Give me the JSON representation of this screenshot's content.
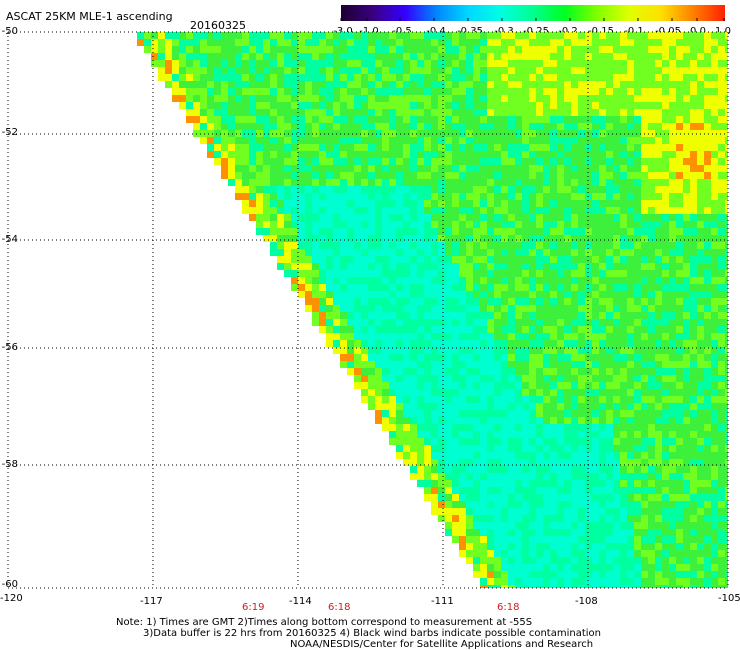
{
  "header": {
    "title": "ASCAT 25KM MLE-1 ascending",
    "date": "20160325"
  },
  "colorbar": {
    "labels": [
      "-3.0",
      "-1.0",
      "-0.5",
      "-0.4",
      "-0.35",
      "-0.3",
      "-0.25",
      "-0.2",
      "-0.15",
      "-0.1",
      "-0.05",
      "0.0",
      "1.0"
    ],
    "colors": [
      "#1a0033",
      "#3a0080",
      "#3300ff",
      "#0088ff",
      "#00d8ff",
      "#00ffe0",
      "#00ff90",
      "#00ff20",
      "#80ff00",
      "#e0ff00",
      "#ffe000",
      "#ff8000",
      "#ff2000"
    ]
  },
  "map": {
    "lon_range": [
      -120,
      -105
    ],
    "lat_range": [
      -60,
      -50
    ],
    "x_ticks": [
      "-120",
      "-117",
      "-114",
      "-111",
      "-108",
      "-105"
    ],
    "y_ticks": [
      "-50",
      "-52",
      "-54",
      "-56",
      "-58",
      "-60"
    ],
    "times": [
      "6:19",
      "6:18",
      "6:18"
    ],
    "colors": {
      "green": "#3cf03c",
      "light_green": "#70ff20",
      "cyan": "#00ffd0",
      "teal": "#00ffa0",
      "yellow": "#f0ff00",
      "orange": "#ff9000",
      "grid": "#000000"
    }
  },
  "footer": {
    "line1": "Note: 1) Times are GMT 2)Times along bottom correspond to measurement at -55S",
    "line2": "3)Data buffer is 22 hrs from 20160325 4) Black wind barbs indicate possible contamination",
    "line3": "NOAA/NESDIS/Center for Satellite Applications and Research"
  }
}
